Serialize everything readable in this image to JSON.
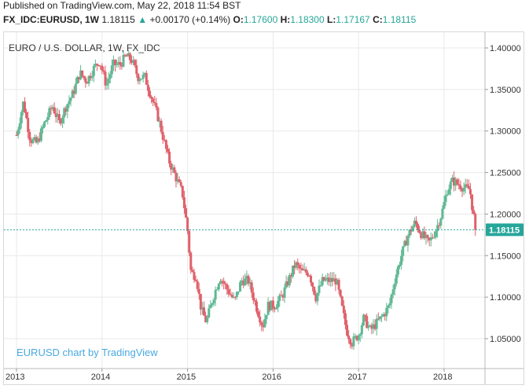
{
  "header": {
    "published": "Published on TradingView.com, May 22, 2018 11:54 BST",
    "symbol": "FX_IDC:EURUSD, 1W",
    "last": "1.18115",
    "up_arrow": "▲",
    "change": "+0.00170 (+0.14%)",
    "open_label": "O:",
    "open": "1.17600",
    "high_label": "H:",
    "high": "1.18300",
    "low_label": "L:",
    "low": "1.17167",
    "close_label": "C:",
    "close": "1.18115"
  },
  "colors": {
    "up": "#26a69a",
    "down": "#ef5350",
    "up_candle": "#5fb893",
    "down_candle": "#e0606a",
    "price_line": "#26a69a",
    "watermark": "#49a9e0",
    "grid": "#e9e9e9",
    "axis_text": "#333333"
  },
  "chart_data": {
    "type": "candlestick",
    "title": "EURO / U.S. DOLLAR, 1W, FX_IDC",
    "watermark": "EURUSD chart by TradingView",
    "y_ticks": [
      "1.40000",
      "1.35000",
      "1.30000",
      "1.25000",
      "1.20000",
      "1.15000",
      "1.10000",
      "1.05000"
    ],
    "x_ticks": [
      "2013",
      "2014",
      "2015",
      "2016",
      "2017",
      "2018"
    ],
    "ylim": [
      1.025,
      1.425
    ],
    "xlim": [
      2013.0,
      2018.55
    ],
    "last_price": 1.18115,
    "last_price_label": "1.18115",
    "grid": true,
    "close_path": [
      [
        2013.0,
        1.295
      ],
      [
        2013.08,
        1.335
      ],
      [
        2013.16,
        1.29
      ],
      [
        2013.24,
        1.285
      ],
      [
        2013.33,
        1.31
      ],
      [
        2013.42,
        1.33
      ],
      [
        2013.5,
        1.31
      ],
      [
        2013.58,
        1.33
      ],
      [
        2013.66,
        1.345
      ],
      [
        2013.74,
        1.37
      ],
      [
        2013.82,
        1.36
      ],
      [
        2013.9,
        1.375
      ],
      [
        2013.97,
        1.385
      ],
      [
        2014.05,
        1.355
      ],
      [
        2014.13,
        1.38
      ],
      [
        2014.21,
        1.38
      ],
      [
        2014.28,
        1.39
      ],
      [
        2014.35,
        1.385
      ],
      [
        2014.42,
        1.365
      ],
      [
        2014.5,
        1.365
      ],
      [
        2014.58,
        1.34
      ],
      [
        2014.66,
        1.315
      ],
      [
        2014.72,
        1.29
      ],
      [
        2014.78,
        1.265
      ],
      [
        2014.86,
        1.245
      ],
      [
        2014.94,
        1.225
      ],
      [
        2015.0,
        1.18
      ],
      [
        2015.04,
        1.13
      ],
      [
        2015.1,
        1.125
      ],
      [
        2015.16,
        1.085
      ],
      [
        2015.22,
        1.07
      ],
      [
        2015.3,
        1.1
      ],
      [
        2015.38,
        1.125
      ],
      [
        2015.46,
        1.11
      ],
      [
        2015.55,
        1.095
      ],
      [
        2015.63,
        1.12
      ],
      [
        2015.71,
        1.12
      ],
      [
        2015.8,
        1.09
      ],
      [
        2015.88,
        1.065
      ],
      [
        2015.94,
        1.09
      ],
      [
        2016.02,
        1.09
      ],
      [
        2016.1,
        1.1
      ],
      [
        2016.18,
        1.12
      ],
      [
        2016.26,
        1.14
      ],
      [
        2016.34,
        1.13
      ],
      [
        2016.42,
        1.13
      ],
      [
        2016.5,
        1.1
      ],
      [
        2016.58,
        1.12
      ],
      [
        2016.66,
        1.12
      ],
      [
        2016.74,
        1.12
      ],
      [
        2016.8,
        1.09
      ],
      [
        2016.86,
        1.06
      ],
      [
        2016.92,
        1.045
      ],
      [
        2017.0,
        1.055
      ],
      [
        2017.06,
        1.075
      ],
      [
        2017.14,
        1.06
      ],
      [
        2017.22,
        1.07
      ],
      [
        2017.3,
        1.08
      ],
      [
        2017.36,
        1.09
      ],
      [
        2017.42,
        1.12
      ],
      [
        2017.5,
        1.15
      ],
      [
        2017.58,
        1.175
      ],
      [
        2017.66,
        1.19
      ],
      [
        2017.74,
        1.175
      ],
      [
        2017.82,
        1.165
      ],
      [
        2017.9,
        1.18
      ],
      [
        2017.97,
        1.2
      ],
      [
        2018.04,
        1.23
      ],
      [
        2018.1,
        1.24
      ],
      [
        2018.18,
        1.235
      ],
      [
        2018.26,
        1.23
      ],
      [
        2018.3,
        1.23
      ],
      [
        2018.34,
        1.2
      ],
      [
        2018.38,
        1.181
      ]
    ]
  }
}
